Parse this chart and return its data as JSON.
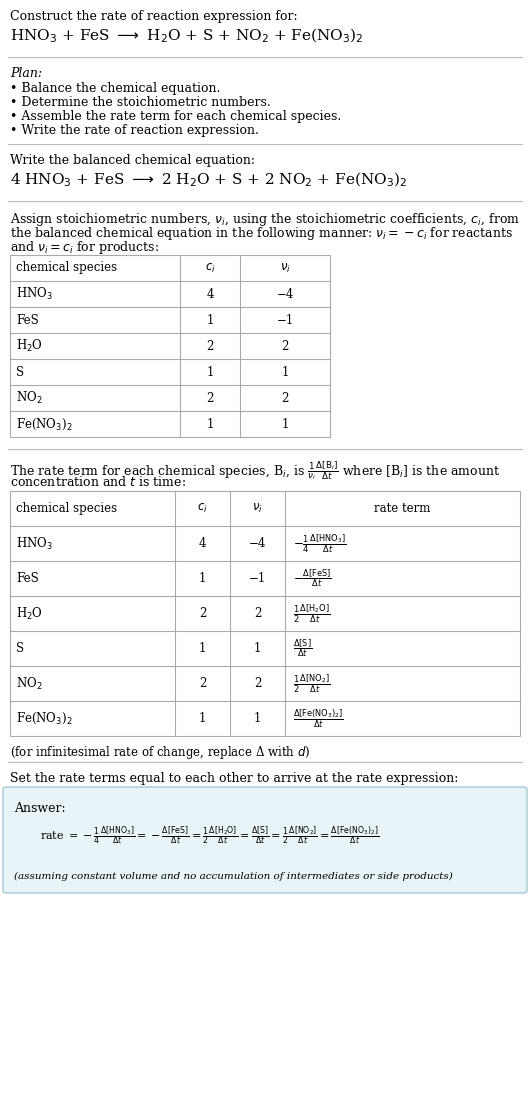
{
  "bg_color": "#ffffff",
  "text_color": "#000000",
  "title_line1": "Construct the rate of reaction expression for:",
  "reaction_unbalanced": "HNO$_3$ + FeS $\\longrightarrow$ H$_2$O + S + NO$_2$ + Fe(NO$_3$)$_2$",
  "plan_header": "Plan:",
  "plan_items": [
    "• Balance the chemical equation.",
    "• Determine the stoichiometric numbers.",
    "• Assemble the rate term for each chemical species.",
    "• Write the rate of reaction expression."
  ],
  "balanced_header": "Write the balanced chemical equation:",
  "reaction_balanced": "4 HNO$_3$ + FeS $\\longrightarrow$ 2 H$_2$O + S + 2 NO$_2$ + Fe(NO$_3$)$_2$",
  "stoich_intro_1": "Assign stoichiometric numbers, $\\nu_i$, using the stoichiometric coefficients, $c_i$, from",
  "stoich_intro_2": "the balanced chemical equation in the following manner: $\\nu_i = -c_i$ for reactants",
  "stoich_intro_3": "and $\\nu_i = c_i$ for products:",
  "table1_headers": [
    "chemical species",
    "$c_i$",
    "$\\nu_i$"
  ],
  "table1_rows": [
    [
      "HNO$_3$",
      "4",
      "−4"
    ],
    [
      "FeS",
      "1",
      "−1"
    ],
    [
      "H$_2$O",
      "2",
      "2"
    ],
    [
      "S",
      "1",
      "1"
    ],
    [
      "NO$_2$",
      "2",
      "2"
    ],
    [
      "Fe(NO$_3$)$_2$",
      "1",
      "1"
    ]
  ],
  "rate_intro_1": "The rate term for each chemical species, B$_i$, is $\\frac{1}{\\nu_i}\\frac{\\Delta[\\mathrm{B}_i]}{\\Delta t}$ where [B$_i$] is the amount",
  "rate_intro_2": "concentration and $t$ is time:",
  "table2_headers": [
    "chemical species",
    "$c_i$",
    "$\\nu_i$",
    "rate term"
  ],
  "table2_rows": [
    [
      "HNO$_3$",
      "4",
      "−4",
      "$-\\frac{1}{4}\\frac{\\Delta[\\mathrm{HNO_3}]}{\\Delta t}$"
    ],
    [
      "FeS",
      "1",
      "−1",
      "$-\\frac{\\Delta[\\mathrm{FeS}]}{\\Delta t}$"
    ],
    [
      "H$_2$O",
      "2",
      "2",
      "$\\frac{1}{2}\\frac{\\Delta[\\mathrm{H_2O}]}{\\Delta t}$"
    ],
    [
      "S",
      "1",
      "1",
      "$\\frac{\\Delta[\\mathrm{S}]}{\\Delta t}$"
    ],
    [
      "NO$_2$",
      "2",
      "2",
      "$\\frac{1}{2}\\frac{\\Delta[\\mathrm{NO_2}]}{\\Delta t}$"
    ],
    [
      "Fe(NO$_3$)$_2$",
      "1",
      "1",
      "$\\frac{\\Delta[\\mathrm{Fe(NO_3)_2}]}{\\Delta t}$"
    ]
  ],
  "infinitesimal_note": "(for infinitesimal rate of change, replace Δ with $d$)",
  "set_equal_text": "Set the rate terms equal to each other to arrive at the rate expression:",
  "answer_label": "Answer:",
  "answer_box_color": "#e8f4f8",
  "answer_box_edge": "#a0c8d8",
  "rate_expression": "rate $= -\\frac{1}{4}\\frac{\\Delta[\\mathrm{HNO_3}]}{\\Delta t} = -\\frac{\\Delta[\\mathrm{FeS}]}{\\Delta t} = \\frac{1}{2}\\frac{\\Delta[\\mathrm{H_2O}]}{\\Delta t} = \\frac{\\Delta[\\mathrm{S}]}{\\Delta t} = \\frac{1}{2}\\frac{\\Delta[\\mathrm{NO_2}]}{\\Delta t} = \\frac{\\Delta[\\mathrm{Fe(NO_3)_2}]}{\\Delta t}$",
  "assuming_note": "(assuming constant volume and no accumulation of intermediates or side products)"
}
